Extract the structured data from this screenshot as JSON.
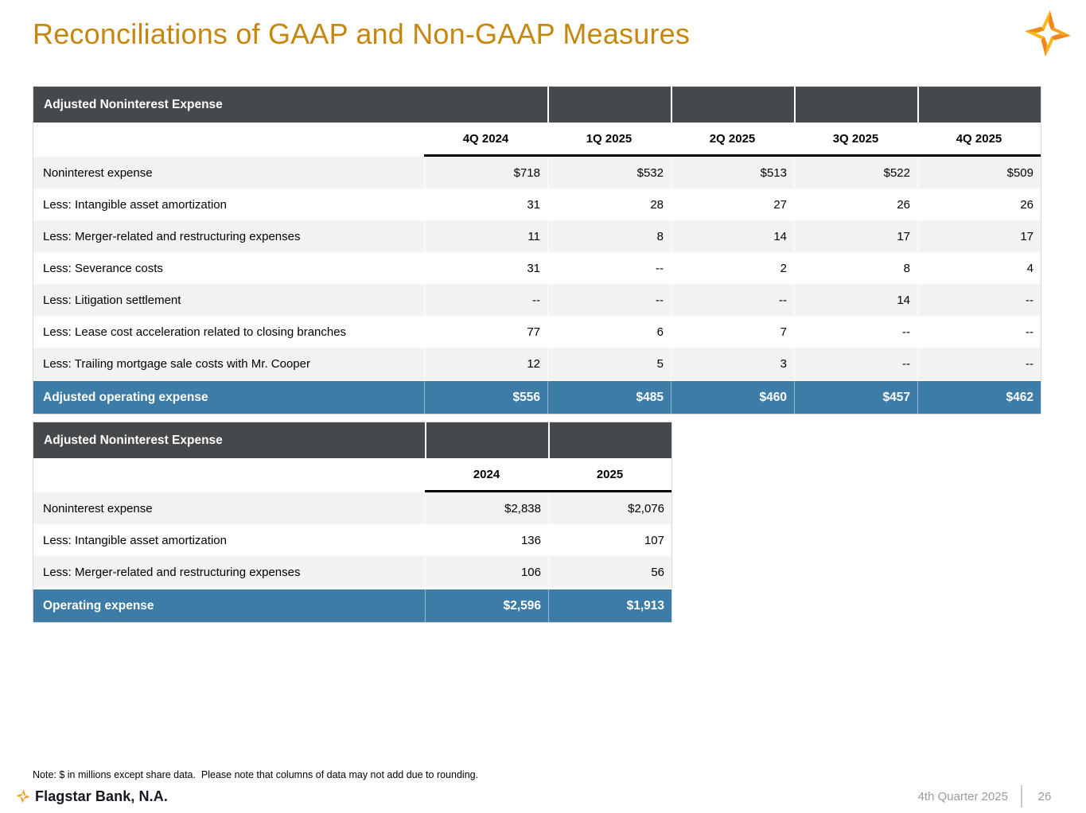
{
  "title": "Reconciliations of GAAP and Non-GAAP Measures",
  "tables": [
    {
      "header": "Adjusted Noninterest Expense",
      "columns": [
        "4Q 2024",
        "1Q 2025",
        "2Q 2025",
        "3Q 2025",
        "4Q 2025"
      ],
      "rows": [
        {
          "label": "Noninterest expense",
          "values": [
            "$718",
            "$532",
            "$513",
            "$522",
            "$509"
          ]
        },
        {
          "label": "Less: Intangible asset amortization",
          "values": [
            "31",
            "28",
            "27",
            "26",
            "26"
          ]
        },
        {
          "label": "Less: Merger-related and restructuring expenses",
          "values": [
            "11",
            "8",
            "14",
            "17",
            "17"
          ]
        },
        {
          "label": "Less: Severance costs",
          "values": [
            "31",
            "--",
            "2",
            "8",
            "4"
          ]
        },
        {
          "label": "Less: Litigation settlement",
          "values": [
            "--",
            "--",
            "--",
            "14",
            "--"
          ]
        },
        {
          "label": "Less: Lease cost acceleration related to closing branches",
          "values": [
            "77",
            "6",
            "7",
            "--",
            "--"
          ]
        },
        {
          "label": "Less: Trailing mortgage sale costs with Mr. Cooper",
          "values": [
            "12",
            "5",
            "3",
            "--",
            "--"
          ]
        }
      ],
      "total": {
        "label": "Adjusted operating expense",
        "values": [
          "$556",
          "$485",
          "$460",
          "$457",
          "$462"
        ]
      }
    },
    {
      "header": "Adjusted Noninterest Expense",
      "columns": [
        "2024",
        "2025"
      ],
      "rows": [
        {
          "label": "Noninterest expense",
          "values": [
            "$2,838",
            "$2,076"
          ]
        },
        {
          "label": "Less: Intangible asset amortization",
          "values": [
            "136",
            "107"
          ]
        },
        {
          "label": "Less: Merger-related and restructuring expenses",
          "values": [
            "106",
            "56"
          ]
        }
      ],
      "total": {
        "label": "Operating expense",
        "values": [
          "$2,596",
          "$1,913"
        ]
      }
    }
  ],
  "note": "Note: $ in millions except share data.  Please note that columns of data may not add due to rounding.",
  "footer": {
    "brand": "Flagstar Bank, N.A.",
    "period": "4th Quarter 2025",
    "page": "26"
  },
  "icons": {
    "logo": "flagstar-star-icon",
    "footer_logo": "flagstar-star-icon"
  },
  "colors": {
    "title_gold": "#C5870D",
    "table_header_gray": "#46494B",
    "total_row_blue": "#3C7CA6",
    "row_alt_gray": "#F2F2F2",
    "footer_text_gray": "#9B9B9B",
    "logo_orange": "#F58220",
    "logo_yellow": "#FDB515"
  }
}
